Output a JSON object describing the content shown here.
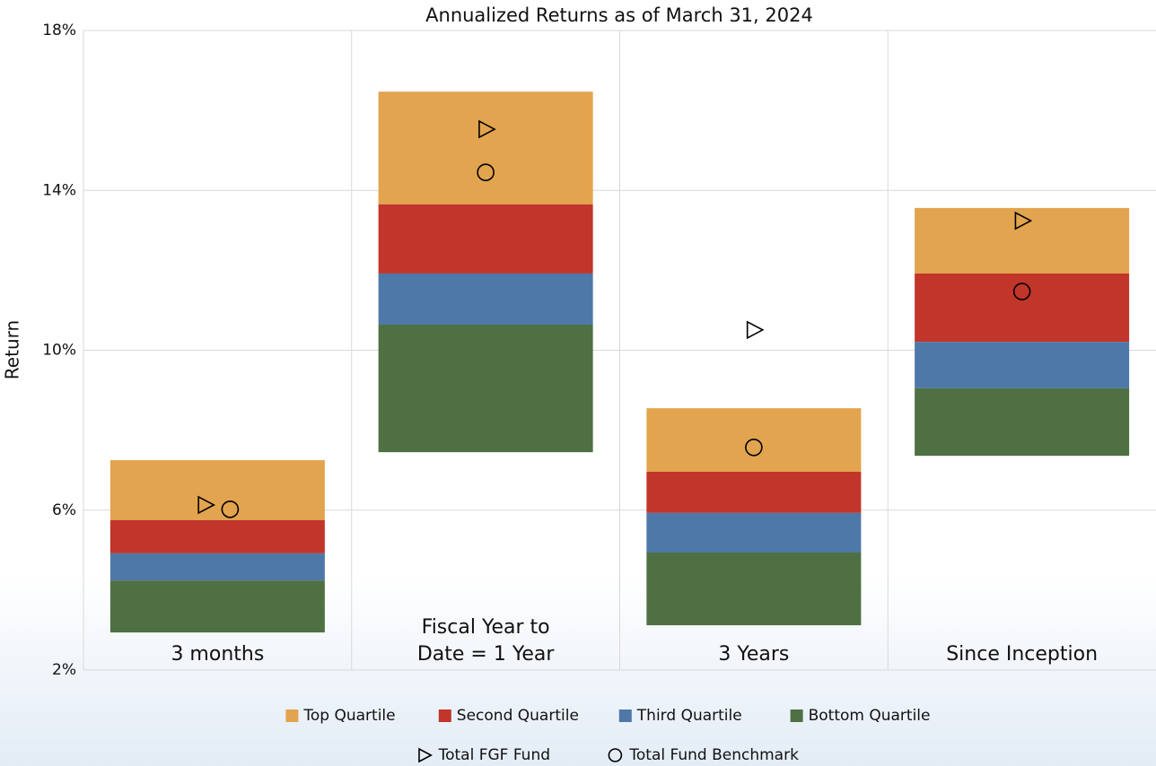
{
  "chart_data": {
    "type": "floating_bar",
    "title": "Annualized Returns as of March 31, 2024",
    "y_label": "Return",
    "categories": [
      "3 months",
      "Fiscal Year to Date = 1 Year",
      "3 Years",
      "Since Inception"
    ],
    "series": [
      {
        "name": "Top Quartile",
        "color": "#e2a44e",
        "values": [
          [
            5.75,
            7.25
          ],
          [
            13.65,
            16.47
          ],
          [
            6.96,
            8.55
          ],
          [
            11.92,
            13.56
          ]
        ]
      },
      {
        "name": "Second Quartile",
        "color": "#c1352a",
        "values": [
          [
            4.92,
            5.75
          ],
          [
            11.92,
            13.65
          ],
          [
            5.93,
            6.96
          ],
          [
            10.21,
            11.92
          ]
        ]
      },
      {
        "name": "Third Quartile",
        "color": "#4e78a8",
        "values": [
          [
            4.24,
            4.92
          ],
          [
            10.64,
            11.92
          ],
          [
            4.94,
            5.93
          ],
          [
            9.05,
            10.21
          ]
        ]
      },
      {
        "name": "Bottom Quartile",
        "color": "#4f7043",
        "values": [
          [
            2.94,
            4.24
          ],
          [
            7.45,
            10.64
          ],
          [
            3.12,
            4.94
          ],
          [
            7.36,
            9.05
          ]
        ]
      }
    ],
    "markers": [
      {
        "name": "Total FGF Fund",
        "marker": "triangle",
        "color": "#000000",
        "values": [
          6.13,
          15.53,
          10.51,
          13.24
        ]
      },
      {
        "name": "Total Fund Benchmark",
        "marker": "circle",
        "color": "#000000",
        "values": [
          6.02,
          14.45,
          7.57,
          11.47
        ]
      }
    ],
    "ylim": [
      2,
      18
    ],
    "yticks": [
      {
        "value": 2,
        "label": "2%"
      },
      {
        "value": 6,
        "label": "6%"
      },
      {
        "value": 10,
        "label": "10%"
      },
      {
        "value": 14,
        "label": "14%"
      },
      {
        "value": 18,
        "label": "18%"
      }
    ],
    "grid": true
  }
}
